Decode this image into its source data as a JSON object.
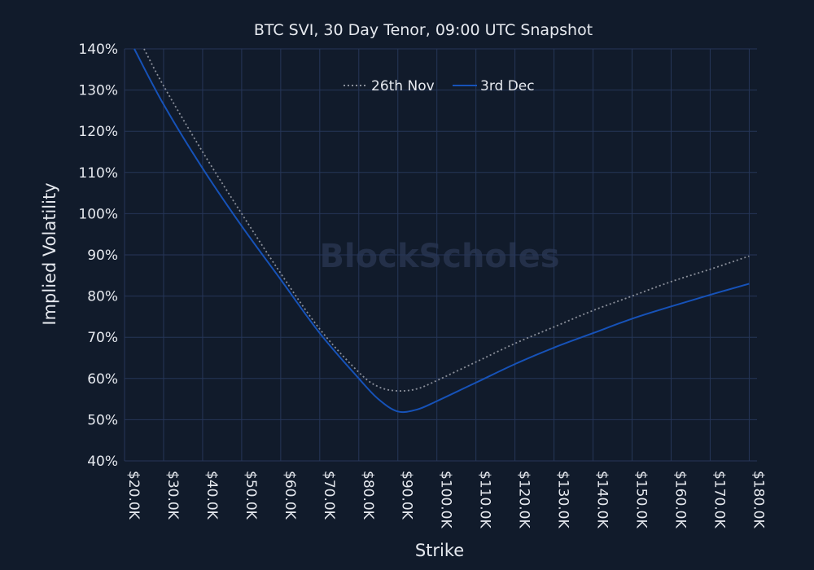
{
  "chart_data": {
    "type": "line",
    "title": "BTC SVI, 30 Day Tenor, 09:00 UTC Snapshot",
    "xlabel": "Strike",
    "ylabel": "Implied Volatility",
    "xlim": [
      20000,
      182000
    ],
    "ylim": [
      40,
      140
    ],
    "x_ticks": [
      20000,
      30000,
      40000,
      50000,
      60000,
      70000,
      80000,
      90000,
      100000,
      110000,
      120000,
      130000,
      140000,
      150000,
      160000,
      170000,
      180000
    ],
    "x_tick_labels": [
      "$20.0K",
      "$30.0K",
      "$40.0K",
      "$50.0K",
      "$60.0K",
      "$70.0K",
      "$80.0K",
      "$90.0K",
      "$100.0K",
      "$110.0K",
      "$120.0K",
      "$130.0K",
      "$140.0K",
      "$150.0K",
      "$160.0K",
      "$170.0K",
      "$180.0K"
    ],
    "y_ticks": [
      40,
      50,
      60,
      70,
      80,
      90,
      100,
      110,
      120,
      130,
      140
    ],
    "y_tick_labels": [
      "40%",
      "50%",
      "60%",
      "70%",
      "80%",
      "90%",
      "100%",
      "110%",
      "120%",
      "130%",
      "140%"
    ],
    "grid": true,
    "legend_position": "top-center",
    "watermark": "BlockScholes",
    "series": [
      {
        "name": "26th Nov",
        "style": "dotted",
        "color": "#8a8f9a",
        "x": [
          25000,
          30000,
          40000,
          50000,
          60000,
          70000,
          80000,
          85000,
          90000,
          95000,
          100000,
          110000,
          120000,
          130000,
          140000,
          150000,
          160000,
          170000,
          180000
        ],
        "y": [
          140,
          131,
          115,
          100,
          85.5,
          72,
          61.5,
          58,
          57,
          57.5,
          59.5,
          64,
          68.5,
          72.5,
          76.5,
          80,
          83.5,
          86.5,
          89.7
        ]
      },
      {
        "name": "3rd Dec",
        "style": "solid",
        "color": "#1652b8",
        "x": [
          22500,
          30000,
          40000,
          50000,
          60000,
          70000,
          80000,
          85000,
          90000,
          95000,
          100000,
          110000,
          120000,
          130000,
          140000,
          150000,
          160000,
          170000,
          180000
        ],
        "y": [
          140,
          126.5,
          111,
          97,
          84,
          71,
          60,
          55,
          52,
          52.5,
          54.5,
          59,
          63.5,
          67.5,
          71,
          74.5,
          77.5,
          80.3,
          83
        ]
      }
    ]
  }
}
